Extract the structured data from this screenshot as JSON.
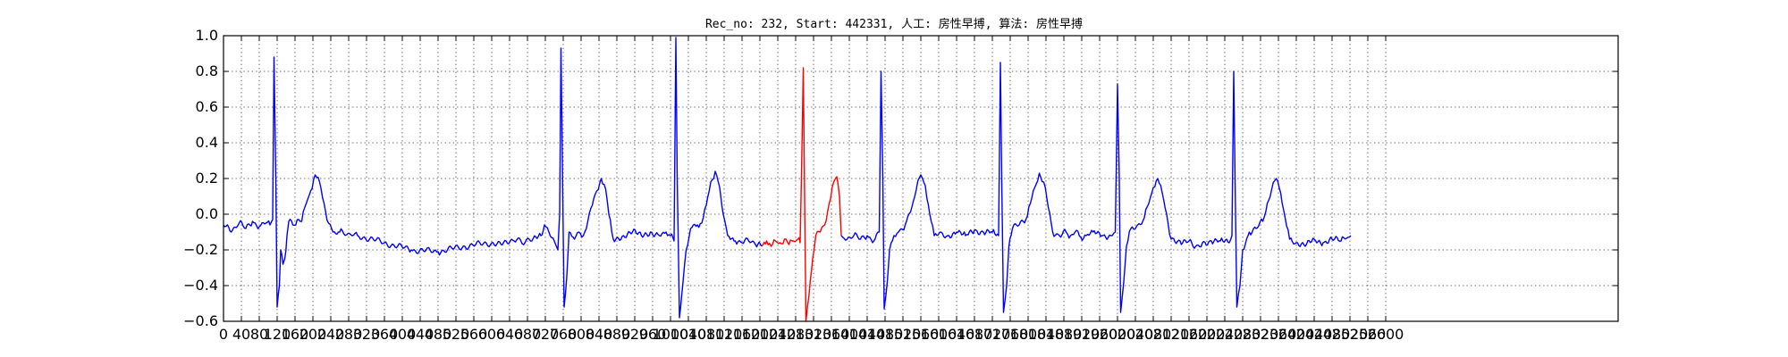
{
  "chart_data": {
    "type": "line",
    "title": "Rec_no: 232, Start: 442331, 人工: 房性早搏, 算法: 房性早搏",
    "xlabel": "",
    "ylabel": "",
    "xlim": [
      0,
      3120
    ],
    "ylim": [
      -0.6,
      1.0
    ],
    "grid": true,
    "y_ticks": [
      -0.6,
      -0.4,
      -0.2,
      0.0,
      0.2,
      0.4,
      0.6,
      0.8,
      1.0
    ],
    "y_tick_labels": [
      "−0.6",
      "−0.4",
      "−0.2",
      "0.0",
      "0.2",
      "0.4",
      "0.6",
      "0.8",
      "1.0"
    ],
    "x_tick_labels": [
      "0",
      "40",
      "80",
      "120",
      "160",
      "200",
      "240",
      "280",
      "320",
      "360",
      "400",
      "440",
      "480",
      "520",
      "560",
      "600",
      "640",
      "680",
      "720",
      "760",
      "800",
      "840",
      "880",
      "920",
      "960",
      "1000",
      "1040",
      "1080",
      "1120",
      "1160",
      "1200",
      "1240",
      "1280",
      "1320",
      "1360",
      "1400",
      "1440",
      "1480",
      "1520",
      "1560",
      "1600",
      "1640",
      "1680",
      "1720",
      "1760",
      "1800",
      "1840",
      "1880",
      "1920",
      "1960",
      "2000",
      "2040",
      "2080",
      "2120",
      "2160",
      "2200",
      "2240",
      "2280",
      "2320",
      "2360",
      "2400",
      "2440",
      "2480",
      "2520",
      "2560",
      "2600"
    ],
    "series": [
      {
        "color": "#0000ff",
        "segments": [
          {
            "x_range": [
              0,
              1204
            ],
            "points": [
              [
                0,
                -0.06
              ],
              [
                20,
                -0.09
              ],
              [
                35,
                -0.05
              ],
              [
                50,
                -0.08
              ],
              [
                65,
                -0.04
              ],
              [
                80,
                -0.07
              ],
              [
                95,
                -0.05
              ],
              [
                104,
                -0.06
              ],
              [
                110,
                -0.03
              ],
              [
                113,
                0.88
              ],
              [
                117,
                0.2
              ],
              [
                120,
                -0.52
              ],
              [
                125,
                -0.4
              ],
              [
                128,
                -0.2
              ],
              [
                133,
                -0.28
              ],
              [
                137,
                -0.25
              ],
              [
                142,
                -0.12
              ],
              [
                146,
                -0.04
              ],
              [
                155,
                -0.06
              ],
              [
                165,
                -0.03
              ],
              [
                175,
                -0.04
              ],
              [
                185,
                0.06
              ],
              [
                195,
                0.13
              ],
              [
                205,
                0.22
              ],
              [
                215,
                0.18
              ],
              [
                225,
                0.06
              ],
              [
                235,
                -0.05
              ],
              [
                245,
                -0.1
              ],
              [
                260,
                -0.1
              ],
              [
                300,
                -0.12
              ],
              [
                360,
                -0.16
              ],
              [
                420,
                -0.2
              ],
              [
                480,
                -0.21
              ],
              [
                540,
                -0.18
              ],
              [
                600,
                -0.16
              ],
              [
                650,
                -0.15
              ],
              [
                690,
                -0.15
              ],
              [
                710,
                -0.12
              ],
              [
                718,
                -0.06
              ],
              [
                728,
                -0.1
              ],
              [
                740,
                -0.15
              ],
              [
                748,
                -0.2
              ],
              [
                752,
                0.0
              ],
              [
                755,
                0.93
              ],
              [
                759,
                0.1
              ],
              [
                762,
                -0.52
              ],
              [
                768,
                -0.35
              ],
              [
                773,
                -0.1
              ],
              [
                785,
                -0.14
              ],
              [
                795,
                -0.1
              ],
              [
                805,
                -0.12
              ],
              [
                815,
                -0.04
              ],
              [
                825,
                0.05
              ],
              [
                835,
                0.13
              ],
              [
                845,
                0.2
              ],
              [
                855,
                0.14
              ],
              [
                862,
                0.0
              ],
              [
                872,
                -0.14
              ],
              [
                895,
                -0.12
              ],
              [
                915,
                -0.1
              ],
              [
                935,
                -0.12
              ],
              [
                955,
                -0.1
              ],
              [
                975,
                -0.12
              ],
              [
                990,
                -0.1
              ],
              [
                1000,
                -0.12
              ],
              [
                1008,
                -0.15
              ],
              [
                1012,
                0.99
              ],
              [
                1015,
                0.2
              ],
              [
                1020,
                -0.58
              ],
              [
                1028,
                -0.38
              ],
              [
                1035,
                -0.2
              ],
              [
                1045,
                -0.08
              ],
              [
                1060,
                -0.06
              ],
              [
                1070,
                -0.05
              ],
              [
                1080,
                0.05
              ],
              [
                1090,
                0.18
              ],
              [
                1100,
                0.24
              ],
              [
                1110,
                0.15
              ],
              [
                1118,
                0.0
              ],
              [
                1128,
                -0.12
              ],
              [
                1145,
                -0.15
              ],
              [
                1160,
                -0.16
              ],
              [
                1175,
                -0.15
              ],
              [
                1190,
                -0.17
              ],
              [
                1204,
                -0.18
              ]
            ]
          },
          {
            "x_range": [
              1382,
              2725
            ],
            "points": [
              [
                1382,
                -0.12
              ],
              [
                1395,
                -0.14
              ],
              [
                1410,
                -0.12
              ],
              [
                1425,
                -0.14
              ],
              [
                1440,
                -0.12
              ],
              [
                1455,
                -0.15
              ],
              [
                1467,
                -0.1
              ],
              [
                1471,
                0.8
              ],
              [
                1475,
                0.2
              ],
              [
                1478,
                -0.53
              ],
              [
                1485,
                -0.38
              ],
              [
                1490,
                -0.2
              ],
              [
                1500,
                -0.12
              ],
              [
                1510,
                -0.1
              ],
              [
                1525,
                -0.06
              ],
              [
                1540,
                0.04
              ],
              [
                1550,
                0.14
              ],
              [
                1560,
                0.22
              ],
              [
                1570,
                0.16
              ],
              [
                1580,
                0.0
              ],
              [
                1590,
                -0.12
              ],
              [
                1605,
                -0.1
              ],
              [
                1620,
                -0.12
              ],
              [
                1640,
                -0.1
              ],
              [
                1660,
                -0.12
              ],
              [
                1680,
                -0.09
              ],
              [
                1700,
                -0.1
              ],
              [
                1720,
                -0.1
              ],
              [
                1734,
                -0.12
              ],
              [
                1738,
                0.85
              ],
              [
                1741,
                0.2
              ],
              [
                1745,
                -0.55
              ],
              [
                1752,
                -0.4
              ],
              [
                1757,
                -0.18
              ],
              [
                1765,
                -0.08
              ],
              [
                1780,
                -0.06
              ],
              [
                1795,
                -0.03
              ],
              [
                1805,
                0.06
              ],
              [
                1815,
                0.15
              ],
              [
                1825,
                0.23
              ],
              [
                1835,
                0.18
              ],
              [
                1845,
                0.04
              ],
              [
                1855,
                -0.1
              ],
              [
                1870,
                -0.12
              ],
              [
                1885,
                -0.1
              ],
              [
                1895,
                -0.12
              ],
              [
                1905,
                -0.1
              ],
              [
                1918,
                -0.13
              ],
              [
                1930,
                -0.12
              ],
              [
                1945,
                -0.1
              ],
              [
                1965,
                -0.12
              ],
              [
                1985,
                -0.12
              ],
              [
                1995,
                -0.1
              ],
              [
                2000,
                0.73
              ],
              [
                2004,
                0.2
              ],
              [
                2007,
                -0.55
              ],
              [
                2014,
                -0.38
              ],
              [
                2020,
                -0.18
              ],
              [
                2030,
                -0.08
              ],
              [
                2045,
                -0.06
              ],
              [
                2060,
                -0.02
              ],
              [
                2070,
                0.06
              ],
              [
                2080,
                0.15
              ],
              [
                2090,
                0.2
              ],
              [
                2100,
                0.12
              ],
              [
                2110,
                0.0
              ],
              [
                2120,
                -0.14
              ],
              [
                2140,
                -0.15
              ],
              [
                2160,
                -0.15
              ],
              [
                2175,
                -0.18
              ],
              [
                2190,
                -0.16
              ],
              [
                2210,
                -0.15
              ],
              [
                2230,
                -0.15
              ],
              [
                2250,
                -0.16
              ],
              [
                2256,
                -0.12
              ],
              [
                2260,
                0.8
              ],
              [
                2263,
                0.2
              ],
              [
                2267,
                -0.52
              ],
              [
                2274,
                -0.4
              ],
              [
                2280,
                -0.2
              ],
              [
                2295,
                -0.1
              ],
              [
                2310,
                -0.08
              ],
              [
                2325,
                -0.04
              ],
              [
                2335,
                0.06
              ],
              [
                2345,
                0.14
              ],
              [
                2355,
                0.2
              ],
              [
                2365,
                0.12
              ],
              [
                2375,
                -0.02
              ],
              [
                2385,
                -0.14
              ],
              [
                2400,
                -0.16
              ],
              [
                2420,
                -0.18
              ],
              [
                2440,
                -0.14
              ],
              [
                2460,
                -0.16
              ],
              [
                2480,
                -0.14
              ],
              [
                2500,
                -0.15
              ],
              [
                2515,
                -0.13
              ],
              [
                2522,
                -0.12
              ]
            ]
          }
        ]
      },
      {
        "color": "#ff0000",
        "segments": [
          {
            "x_range": [
              1204,
              1382
            ],
            "points": [
              [
                1204,
                -0.18
              ],
              [
                1215,
                -0.15
              ],
              [
                1225,
                -0.18
              ],
              [
                1235,
                -0.15
              ],
              [
                1245,
                -0.16
              ],
              [
                1255,
                -0.14
              ],
              [
                1265,
                -0.17
              ],
              [
                1275,
                -0.15
              ],
              [
                1285,
                -0.14
              ],
              [
                1290,
                -0.16
              ],
              [
                1295,
                0.5
              ],
              [
                1297,
                0.82
              ],
              [
                1300,
                0.1
              ],
              [
                1303,
                -0.6
              ],
              [
                1310,
                -0.45
              ],
              [
                1318,
                -0.25
              ],
              [
                1325,
                -0.12
              ],
              [
                1335,
                -0.1
              ],
              [
                1345,
                -0.06
              ],
              [
                1355,
                0.06
              ],
              [
                1365,
                0.18
              ],
              [
                1372,
                0.21
              ],
              [
                1378,
                0.1
              ],
              [
                1382,
                -0.12
              ]
            ]
          }
        ]
      }
    ]
  }
}
